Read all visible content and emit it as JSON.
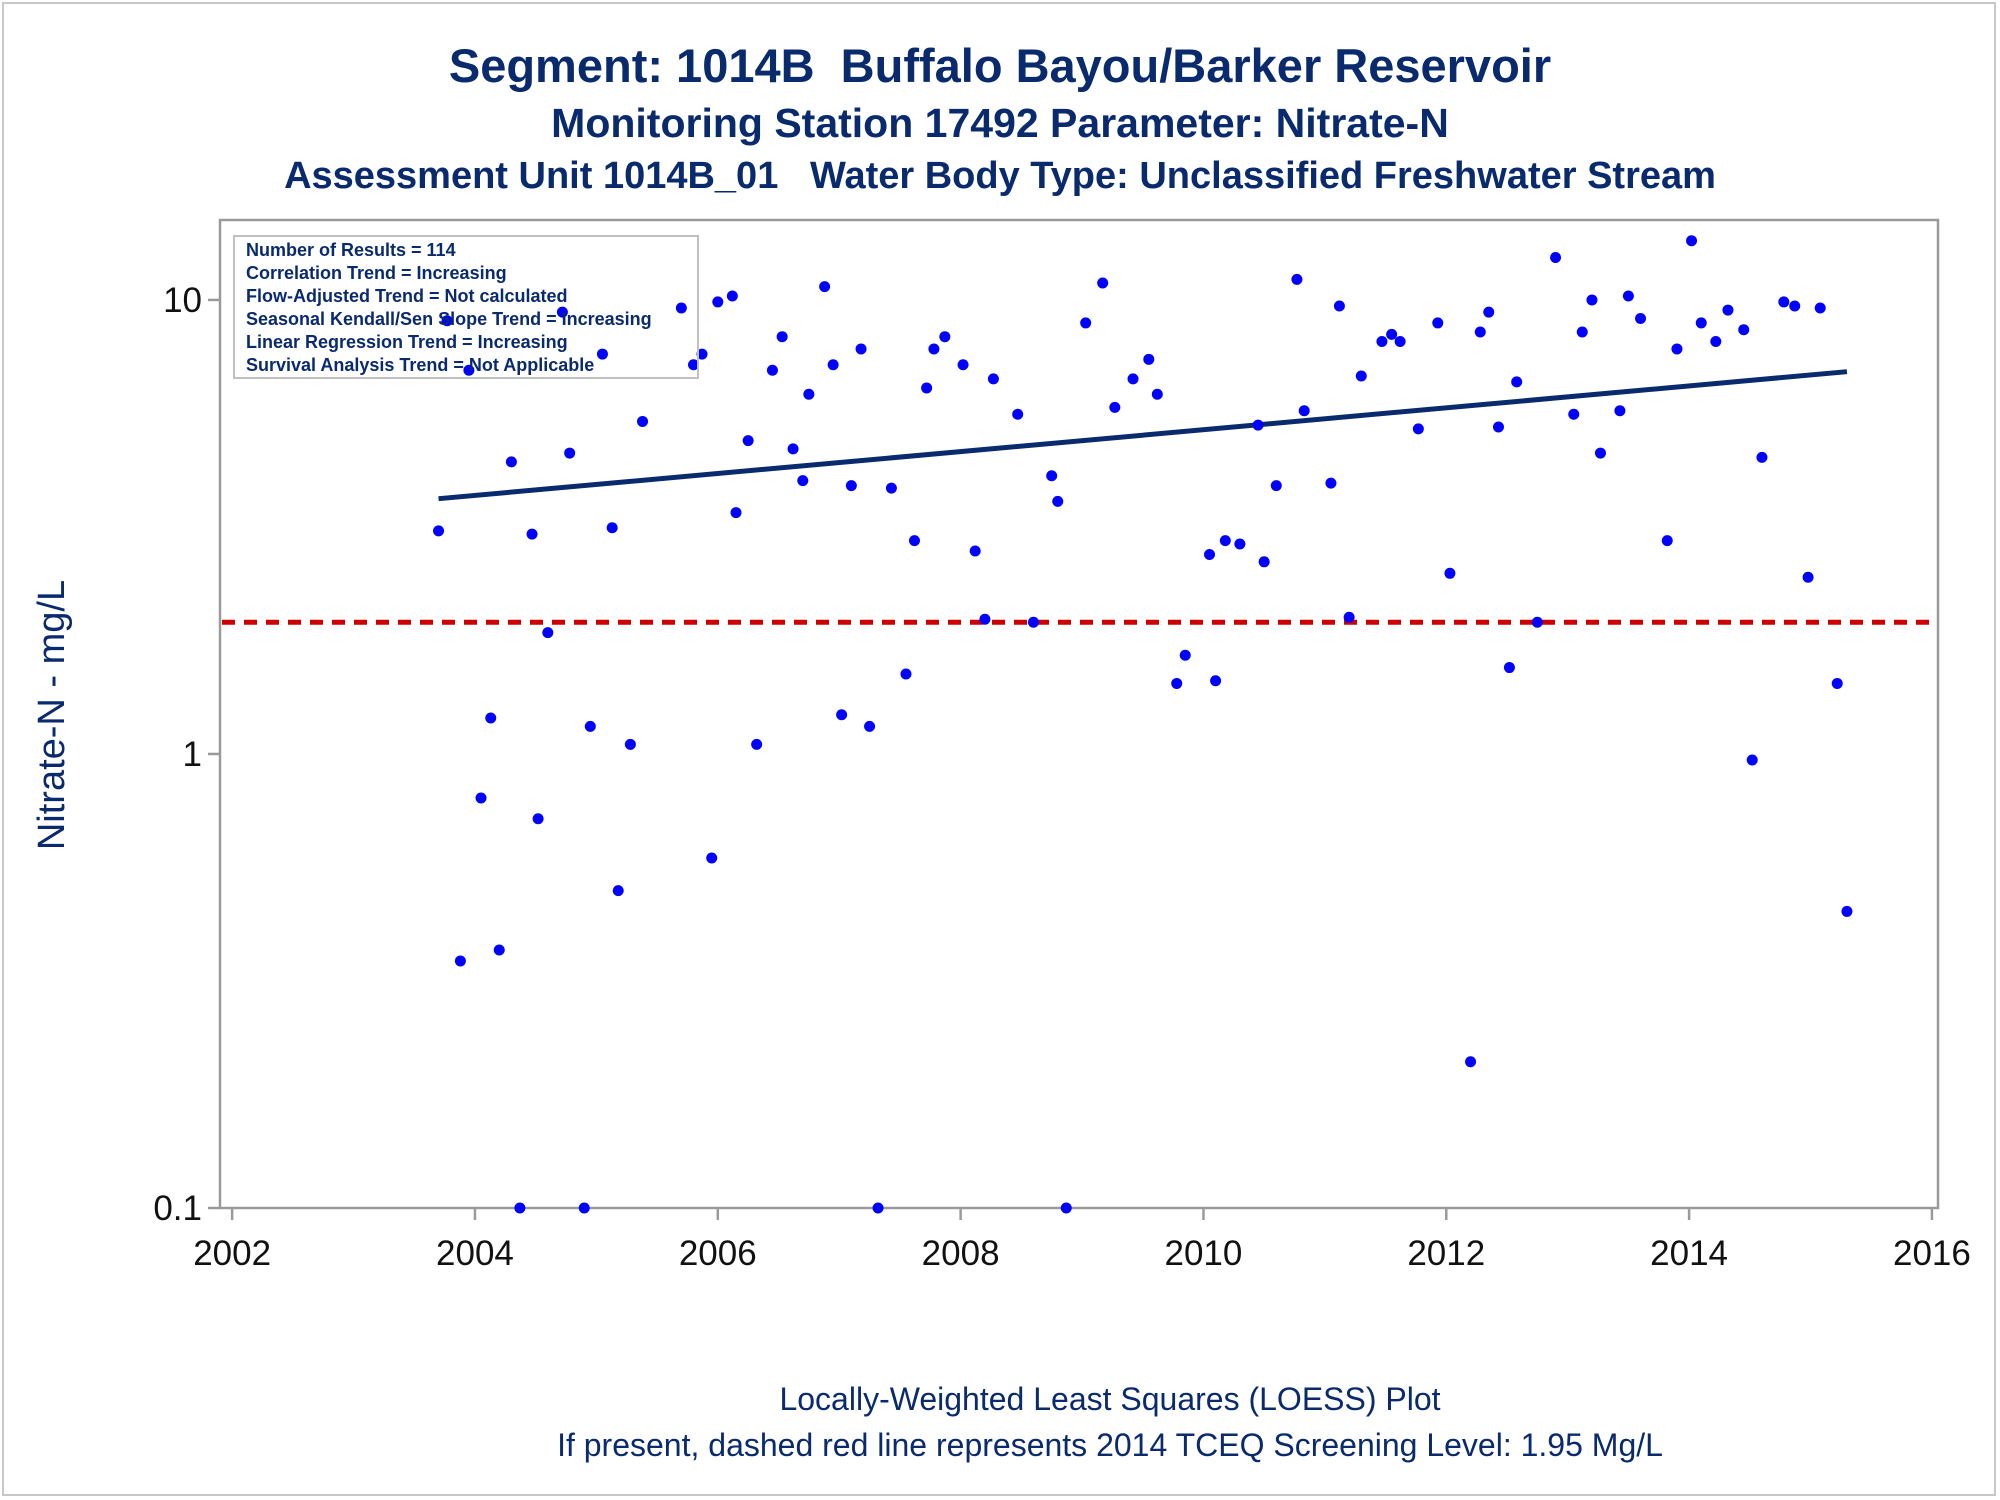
{
  "header": {
    "title": "Segment: 1014B  Buffalo Bayou/Barker Reservoir",
    "subtitle1": "Monitoring Station 17492 Parameter: Nitrate-N",
    "subtitle2": "Assessment Unit 1014B_01   Water Body Type: Unclassified Freshwater Stream"
  },
  "footer": {
    "line1": "Locally-Weighted Least Squares (LOESS) Plot",
    "line2": "If present, dashed red line represents 2014 TCEQ Screening Level: 1.95 Mg/L"
  },
  "stats_box": [
    "Number of Results = 114",
    "Correlation Trend = Increasing",
    "Flow-Adjusted Trend = Not calculated",
    "Seasonal Kendall/Sen Slope Trend = Increasing",
    "Linear Regression Trend = Increasing",
    "Survival Analysis Trend = Not Applicable"
  ],
  "colors": {
    "title": "#0a2a6e",
    "points": "#0000ff",
    "trend_line": "#0a2a6e",
    "screening_line": "#cc0000",
    "frame": "#9a9a9a"
  },
  "chart_data": {
    "type": "scatter",
    "xlabel": "",
    "ylabel": "Nitrate-N - mg/L",
    "x_ticks": [
      2002,
      2004,
      2006,
      2008,
      2010,
      2012,
      2014,
      2016
    ],
    "x_tick_labels": [
      "2002",
      "2004",
      "2006",
      "2008",
      "2010",
      "2012",
      "2014",
      "2016"
    ],
    "xlim": [
      2001.9,
      2016.05
    ],
    "y_scale": "log",
    "y_ticks": [
      0.1,
      1,
      10
    ],
    "y_tick_labels": [
      "0.1",
      "1",
      "10"
    ],
    "ylim": [
      0.1,
      15
    ],
    "grid": false,
    "legend_placement": "top-left",
    "points": [
      [
        2003.7,
        3.1
      ],
      [
        2003.77,
        9.0
      ],
      [
        2003.88,
        0.35
      ],
      [
        2003.95,
        7.0
      ],
      [
        2004.05,
        0.8
      ],
      [
        2004.13,
        1.2
      ],
      [
        2004.2,
        0.37
      ],
      [
        2004.3,
        4.4
      ],
      [
        2004.37,
        0.1
      ],
      [
        2004.47,
        3.05
      ],
      [
        2004.52,
        0.72
      ],
      [
        2004.6,
        1.85
      ],
      [
        2004.72,
        9.4
      ],
      [
        2004.78,
        4.6
      ],
      [
        2004.9,
        0.1
      ],
      [
        2004.95,
        1.15
      ],
      [
        2005.05,
        7.6
      ],
      [
        2005.13,
        3.15
      ],
      [
        2005.18,
        0.5
      ],
      [
        2005.28,
        1.05
      ],
      [
        2005.38,
        5.4
      ],
      [
        2005.7,
        9.6
      ],
      [
        2005.8,
        7.2
      ],
      [
        2005.87,
        7.6
      ],
      [
        2005.95,
        0.59
      ],
      [
        2006.0,
        9.9
      ],
      [
        2006.12,
        10.2
      ],
      [
        2006.15,
        3.4
      ],
      [
        2006.25,
        4.9
      ],
      [
        2006.32,
        1.05
      ],
      [
        2006.45,
        7.0
      ],
      [
        2006.53,
        8.3
      ],
      [
        2006.62,
        4.7
      ],
      [
        2006.7,
        4.0
      ],
      [
        2006.75,
        6.2
      ],
      [
        2006.88,
        10.7
      ],
      [
        2006.95,
        7.2
      ],
      [
        2007.02,
        1.22
      ],
      [
        2007.1,
        3.9
      ],
      [
        2007.18,
        7.8
      ],
      [
        2007.25,
        1.15
      ],
      [
        2007.32,
        0.1
      ],
      [
        2007.43,
        3.85
      ],
      [
        2007.55,
        1.5
      ],
      [
        2007.62,
        2.95
      ],
      [
        2007.72,
        6.4
      ],
      [
        2007.78,
        7.8
      ],
      [
        2007.87,
        8.3
      ],
      [
        2008.02,
        7.2
      ],
      [
        2008.12,
        2.8
      ],
      [
        2008.2,
        1.98
      ],
      [
        2008.27,
        6.7
      ],
      [
        2008.47,
        5.6
      ],
      [
        2008.6,
        1.95
      ],
      [
        2008.75,
        4.1
      ],
      [
        2008.8,
        3.6
      ],
      [
        2008.87,
        0.1
      ],
      [
        2009.03,
        8.9
      ],
      [
        2009.17,
        10.9
      ],
      [
        2009.27,
        5.8
      ],
      [
        2009.42,
        6.7
      ],
      [
        2009.55,
        7.4
      ],
      [
        2009.62,
        6.2
      ],
      [
        2009.78,
        1.43
      ],
      [
        2009.85,
        1.65
      ],
      [
        2010.05,
        2.75
      ],
      [
        2010.1,
        1.45
      ],
      [
        2010.18,
        2.95
      ],
      [
        2010.3,
        2.9
      ],
      [
        2010.45,
        5.3
      ],
      [
        2010.5,
        2.65
      ],
      [
        2010.6,
        3.9
      ],
      [
        2010.77,
        11.1
      ],
      [
        2010.83,
        5.7
      ],
      [
        2011.05,
        3.95
      ],
      [
        2011.12,
        9.7
      ],
      [
        2011.2,
        2.0
      ],
      [
        2011.3,
        6.8
      ],
      [
        2011.47,
        8.1
      ],
      [
        2011.55,
        8.4
      ],
      [
        2011.62,
        8.1
      ],
      [
        2011.77,
        5.2
      ],
      [
        2011.93,
        8.9
      ],
      [
        2012.03,
        2.5
      ],
      [
        2012.2,
        0.21
      ],
      [
        2012.28,
        8.5
      ],
      [
        2012.35,
        9.4
      ],
      [
        2012.43,
        5.25
      ],
      [
        2012.52,
        1.55
      ],
      [
        2012.58,
        6.6
      ],
      [
        2012.75,
        1.95
      ],
      [
        2012.9,
        12.4
      ],
      [
        2013.05,
        5.6
      ],
      [
        2013.12,
        8.5
      ],
      [
        2013.2,
        10.0
      ],
      [
        2013.27,
        4.6
      ],
      [
        2013.43,
        5.7
      ],
      [
        2013.5,
        10.2
      ],
      [
        2013.6,
        9.1
      ],
      [
        2013.82,
        2.95
      ],
      [
        2013.9,
        7.8
      ],
      [
        2014.02,
        13.5
      ],
      [
        2014.1,
        8.9
      ],
      [
        2014.22,
        8.1
      ],
      [
        2014.32,
        9.5
      ],
      [
        2014.45,
        8.6
      ],
      [
        2014.52,
        0.97
      ],
      [
        2014.6,
        4.5
      ],
      [
        2014.78,
        9.9
      ],
      [
        2014.87,
        9.7
      ],
      [
        2014.98,
        2.45
      ],
      [
        2015.08,
        9.6
      ],
      [
        2015.22,
        1.43
      ],
      [
        2015.3,
        0.45
      ]
    ],
    "trend_line": [
      [
        2003.7,
        3.65
      ],
      [
        2015.3,
        6.95
      ]
    ],
    "screening_level": 1.95
  }
}
